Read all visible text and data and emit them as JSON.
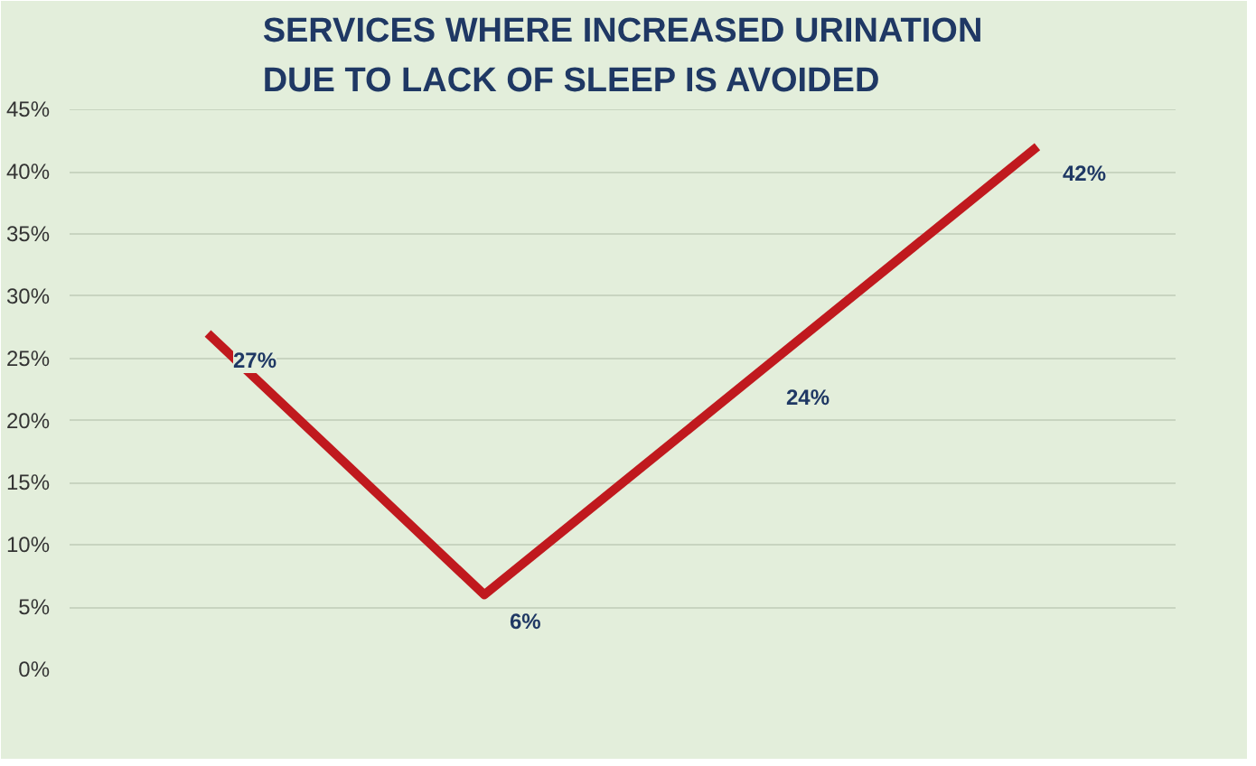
{
  "chart_data": {
    "type": "line",
    "title": "SERVICES WHERE INCREASED URINATION\nDUE TO LACK OF SLEEP IS AVOIDED",
    "categories": [
      null,
      null,
      null,
      null
    ],
    "series": [
      {
        "color": "#c0191e",
        "values": [
          27,
          6,
          24,
          42
        ],
        "value_labels": [
          "27%",
          "6%",
          "24%",
          "42%"
        ]
      }
    ],
    "ylim": [
      0,
      45
    ],
    "yticks": [
      {
        "value": 0,
        "label": "0%"
      },
      {
        "value": 5,
        "label": "5%"
      },
      {
        "value": 10,
        "label": "10%"
      },
      {
        "value": 15,
        "label": "15%"
      },
      {
        "value": 20,
        "label": "20%"
      },
      {
        "value": 25,
        "label": "25%"
      },
      {
        "value": 30,
        "label": "30%"
      },
      {
        "value": 35,
        "label": "35%"
      },
      {
        "value": 40,
        "label": "40%"
      },
      {
        "value": 45,
        "label": "45%"
      }
    ],
    "grid": "y",
    "marker": "none",
    "line_style": "solid"
  }
}
